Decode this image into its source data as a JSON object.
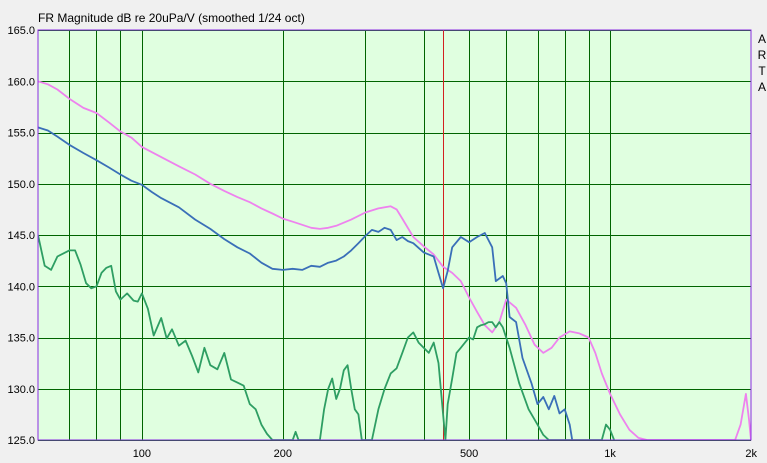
{
  "chart_data": {
    "type": "line",
    "title": "FR Magnitude dB re 20uPa/V (smoothed 1/24 oct)",
    "watermark": [
      "A",
      "R",
      "T",
      "A"
    ],
    "xscale": "log",
    "xlim": [
      60,
      2000
    ],
    "ylim": [
      125,
      165
    ],
    "yticks": [
      "165.0",
      "160.0",
      "155.0",
      "150.0",
      "145.0",
      "140.0",
      "135.0",
      "130.0",
      "125.0"
    ],
    "xticks": [
      {
        "value": 100,
        "label": "100"
      },
      {
        "value": 200,
        "label": "200"
      },
      {
        "value": 500,
        "label": "500"
      },
      {
        "value": 1000,
        "label": "1k"
      },
      {
        "value": 2000,
        "label": "2k"
      }
    ],
    "grid": true,
    "plot_background": "#e0ffe0",
    "grid_color": "#006400",
    "frame_color": "#8a2be2",
    "marker": {
      "x": 440,
      "color": "#d22020"
    },
    "series": [
      {
        "color": "#ee82ee",
        "points": [
          [
            60,
            160.0
          ],
          [
            63,
            159.7
          ],
          [
            66,
            159.2
          ],
          [
            70,
            158.3
          ],
          [
            75,
            157.4
          ],
          [
            80,
            156.9
          ],
          [
            85,
            156.0
          ],
          [
            90,
            155.1
          ],
          [
            95,
            154.5
          ],
          [
            100,
            153.6
          ],
          [
            110,
            152.6
          ],
          [
            120,
            151.7
          ],
          [
            130,
            150.9
          ],
          [
            140,
            150.0
          ],
          [
            150,
            149.3
          ],
          [
            160,
            148.7
          ],
          [
            170,
            148.2
          ],
          [
            180,
            147.6
          ],
          [
            190,
            147.1
          ],
          [
            200,
            146.6
          ],
          [
            210,
            146.3
          ],
          [
            220,
            146.0
          ],
          [
            230,
            145.7
          ],
          [
            240,
            145.6
          ],
          [
            250,
            145.7
          ],
          [
            260,
            145.9
          ],
          [
            280,
            146.5
          ],
          [
            300,
            147.2
          ],
          [
            320,
            147.6
          ],
          [
            340,
            147.8
          ],
          [
            350,
            147.5
          ],
          [
            360,
            146.6
          ],
          [
            380,
            144.8
          ],
          [
            400,
            143.9
          ],
          [
            420,
            143.1
          ],
          [
            440,
            141.9
          ],
          [
            460,
            141.3
          ],
          [
            480,
            140.5
          ],
          [
            500,
            138.9
          ],
          [
            520,
            137.5
          ],
          [
            540,
            136.2
          ],
          [
            560,
            135.5
          ],
          [
            580,
            136.5
          ],
          [
            600,
            138.7
          ],
          [
            630,
            137.9
          ],
          [
            660,
            136.2
          ],
          [
            690,
            134.3
          ],
          [
            720,
            133.5
          ],
          [
            750,
            134.0
          ],
          [
            780,
            135.0
          ],
          [
            820,
            135.6
          ],
          [
            860,
            135.4
          ],
          [
            900,
            135.0
          ],
          [
            930,
            133.5
          ],
          [
            960,
            131.5
          ],
          [
            1000,
            129.5
          ],
          [
            1050,
            127.5
          ],
          [
            1100,
            126.0
          ],
          [
            1150,
            125.2
          ],
          [
            1200,
            125.0
          ],
          [
            1850,
            125.0
          ],
          [
            1900,
            126.5
          ],
          [
            1950,
            129.5
          ],
          [
            1980,
            127.0
          ],
          [
            2000,
            125.0
          ]
        ]
      },
      {
        "color": "#3a6fb8",
        "points": [
          [
            60,
            155.5
          ],
          [
            63,
            155.2
          ],
          [
            66,
            154.6
          ],
          [
            70,
            153.8
          ],
          [
            75,
            153.0
          ],
          [
            80,
            152.3
          ],
          [
            85,
            151.6
          ],
          [
            90,
            150.9
          ],
          [
            95,
            150.3
          ],
          [
            100,
            149.9
          ],
          [
            105,
            149.2
          ],
          [
            110,
            148.6
          ],
          [
            120,
            147.7
          ],
          [
            130,
            146.5
          ],
          [
            140,
            145.6
          ],
          [
            150,
            144.6
          ],
          [
            160,
            143.8
          ],
          [
            170,
            143.2
          ],
          [
            180,
            142.3
          ],
          [
            190,
            141.7
          ],
          [
            200,
            141.6
          ],
          [
            210,
            141.7
          ],
          [
            220,
            141.6
          ],
          [
            230,
            142.0
          ],
          [
            240,
            141.9
          ],
          [
            250,
            142.3
          ],
          [
            260,
            142.5
          ],
          [
            270,
            142.9
          ],
          [
            280,
            143.5
          ],
          [
            290,
            144.2
          ],
          [
            300,
            144.9
          ],
          [
            310,
            145.5
          ],
          [
            320,
            145.3
          ],
          [
            330,
            145.7
          ],
          [
            340,
            145.5
          ],
          [
            350,
            144.5
          ],
          [
            360,
            144.8
          ],
          [
            370,
            144.4
          ],
          [
            380,
            144.2
          ],
          [
            400,
            143.3
          ],
          [
            420,
            142.9
          ],
          [
            430,
            141.3
          ],
          [
            440,
            139.8
          ],
          [
            450,
            141.5
          ],
          [
            460,
            143.8
          ],
          [
            480,
            144.8
          ],
          [
            500,
            144.3
          ],
          [
            520,
            144.8
          ],
          [
            540,
            145.2
          ],
          [
            560,
            143.8
          ],
          [
            570,
            140.5
          ],
          [
            590,
            141.0
          ],
          [
            600,
            140.3
          ],
          [
            610,
            137.0
          ],
          [
            630,
            136.5
          ],
          [
            650,
            133.0
          ],
          [
            680,
            130.5
          ],
          [
            700,
            128.5
          ],
          [
            720,
            129.2
          ],
          [
            740,
            128.0
          ],
          [
            760,
            129.3
          ],
          [
            780,
            127.6
          ],
          [
            800,
            128.0
          ],
          [
            820,
            126.5
          ],
          [
            830,
            125.0
          ]
        ]
      },
      {
        "color": "#2e9e63",
        "points": [
          [
            60,
            145.0
          ],
          [
            62,
            142.0
          ],
          [
            64,
            141.6
          ],
          [
            66,
            142.9
          ],
          [
            70,
            143.5
          ],
          [
            72,
            143.5
          ],
          [
            74,
            142.1
          ],
          [
            76,
            140.3
          ],
          [
            78,
            139.8
          ],
          [
            80,
            140.0
          ],
          [
            82,
            141.3
          ],
          [
            84,
            141.8
          ],
          [
            86,
            142.0
          ],
          [
            88,
            139.5
          ],
          [
            90,
            138.7
          ],
          [
            93,
            139.3
          ],
          [
            96,
            138.6
          ],
          [
            98,
            138.5
          ],
          [
            100,
            139.3
          ],
          [
            103,
            137.8
          ],
          [
            106,
            135.2
          ],
          [
            110,
            136.9
          ],
          [
            113,
            134.9
          ],
          [
            116,
            135.8
          ],
          [
            120,
            134.2
          ],
          [
            124,
            134.7
          ],
          [
            128,
            133.2
          ],
          [
            132,
            131.6
          ],
          [
            136,
            134.0
          ],
          [
            140,
            132.3
          ],
          [
            145,
            131.9
          ],
          [
            150,
            133.5
          ],
          [
            155,
            130.9
          ],
          [
            160,
            130.6
          ],
          [
            165,
            130.3
          ],
          [
            170,
            128.5
          ],
          [
            175,
            128.0
          ],
          [
            180,
            126.5
          ],
          [
            185,
            125.6
          ],
          [
            190,
            125.0
          ],
          [
            210,
            125.0
          ],
          [
            213,
            125.8
          ],
          [
            216,
            125.0
          ],
          [
            240,
            125.0
          ],
          [
            245,
            128.0
          ],
          [
            250,
            130.0
          ],
          [
            255,
            131.0
          ],
          [
            260,
            129.0
          ],
          [
            265,
            130.0
          ],
          [
            270,
            131.8
          ],
          [
            275,
            132.3
          ],
          [
            280,
            130.0
          ],
          [
            285,
            128.0
          ],
          [
            290,
            127.5
          ],
          [
            295,
            125.0
          ],
          [
            310,
            125.0
          ],
          [
            320,
            128.0
          ],
          [
            330,
            130.0
          ],
          [
            340,
            131.5
          ],
          [
            350,
            132.0
          ],
          [
            360,
            133.5
          ],
          [
            370,
            135.0
          ],
          [
            380,
            135.5
          ],
          [
            390,
            134.5
          ],
          [
            400,
            134.0
          ],
          [
            410,
            133.5
          ],
          [
            420,
            134.5
          ],
          [
            430,
            132.5
          ],
          [
            440,
            127.5
          ],
          [
            445,
            125.0
          ],
          [
            450,
            128.5
          ],
          [
            460,
            131.0
          ],
          [
            470,
            133.5
          ],
          [
            480,
            134.0
          ],
          [
            490,
            134.5
          ],
          [
            500,
            135.0
          ],
          [
            510,
            134.8
          ],
          [
            520,
            136.0
          ],
          [
            530,
            136.2
          ],
          [
            540,
            136.3
          ],
          [
            550,
            136.5
          ],
          [
            560,
            136.5
          ],
          [
            570,
            136.0
          ],
          [
            580,
            136.5
          ],
          [
            590,
            136.0
          ],
          [
            610,
            134.0
          ],
          [
            640,
            130.5
          ],
          [
            670,
            128.0
          ],
          [
            700,
            126.5
          ],
          [
            720,
            125.5
          ],
          [
            740,
            125.0
          ],
          [
            960,
            125.0
          ],
          [
            980,
            126.5
          ],
          [
            1000,
            126.0
          ],
          [
            1020,
            125.0
          ]
        ]
      }
    ]
  }
}
